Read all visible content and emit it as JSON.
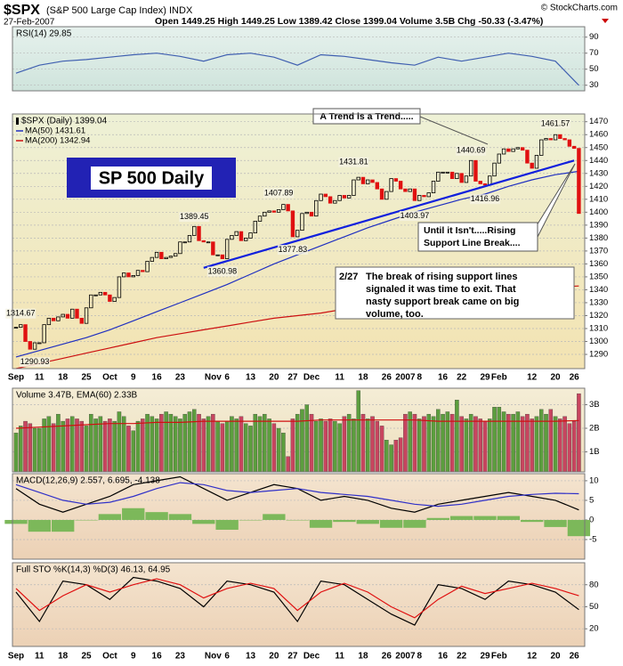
{
  "header": {
    "symbol": "$SPX",
    "name": "(S&P 500 Large Cap Index)",
    "exchange": "INDX",
    "date": "27-Feb-2007",
    "quote": "Open 1449.25 High 1449.25 Low 1389.42 Close 1399.04 Volume 3.5B Chg -50.33 (-3.47%)",
    "credit": "© StockCharts.com"
  },
  "chart_data": [
    {
      "type": "line",
      "title": "RSI(14) 29.85",
      "x": [
        0,
        5,
        10,
        15,
        20,
        25,
        30,
        35,
        40,
        45,
        50,
        55,
        60,
        65,
        70,
        75,
        80,
        85,
        90,
        95,
        100,
        105,
        110,
        115,
        120
      ],
      "series": [
        {
          "color": "#3f5fb0",
          "values": [
            45,
            55,
            60,
            62,
            65,
            68,
            70,
            66,
            60,
            68,
            70,
            65,
            55,
            68,
            66,
            62,
            58,
            55,
            65,
            60,
            65,
            70,
            66,
            60,
            29.85
          ]
        }
      ],
      "ylim": [
        23,
        103
      ],
      "yticks": [
        90,
        70,
        50,
        30
      ]
    },
    {
      "type": "candlestick",
      "title": "$SPX (Daily) 1399.04",
      "categories": [
        "Sep",
        null,
        null,
        null,
        null,
        "11",
        null,
        null,
        null,
        null,
        "18",
        null,
        null,
        null,
        null,
        "25",
        null,
        null,
        null,
        null,
        "Oct",
        null,
        null,
        null,
        null,
        "9",
        null,
        null,
        null,
        null,
        "16",
        null,
        null,
        null,
        null,
        "23",
        null,
        null,
        null,
        null,
        null,
        null,
        "Nov",
        null,
        null,
        "6",
        null,
        null,
        null,
        null,
        "13",
        null,
        null,
        null,
        null,
        "20",
        null,
        null,
        null,
        "27",
        null,
        null,
        null,
        "Dec",
        null,
        null,
        null,
        null,
        null,
        "11",
        null,
        null,
        null,
        null,
        "18",
        null,
        null,
        null,
        null,
        "26",
        null,
        null,
        null,
        "2007",
        null,
        null,
        "8",
        null,
        null,
        null,
        null,
        "16",
        null,
        null,
        null,
        "22",
        null,
        null,
        null,
        null,
        "29",
        null,
        null,
        "Feb",
        null,
        null,
        null,
        null,
        null,
        null,
        "12",
        null,
        null,
        null,
        null,
        "20",
        null,
        null,
        null,
        "26",
        null
      ],
      "close": [
        1311,
        1313,
        1300,
        1294,
        1299,
        1299,
        1313,
        1318,
        1316,
        1319,
        1321,
        1318,
        1325,
        1318,
        1314,
        1326,
        1336,
        1336,
        1338,
        1336,
        1331,
        1334,
        1350,
        1353,
        1350,
        1351,
        1355,
        1354,
        1362,
        1365,
        1369,
        1364,
        1365,
        1366,
        1368,
        1377,
        1377,
        1382,
        1389,
        1378,
        1377,
        1377,
        1367,
        1367,
        1364,
        1379,
        1382,
        1385,
        1378,
        1380,
        1384,
        1393,
        1397,
        1400,
        1401,
        1400,
        1402,
        1406,
        1401,
        1381,
        1386,
        1399,
        1400,
        1397,
        1409,
        1414,
        1412,
        1407,
        1409,
        1413,
        1411,
        1413,
        1425,
        1427,
        1422,
        1425,
        1423,
        1418,
        1410,
        1416,
        1426,
        1424,
        1418,
        1416,
        1418,
        1409,
        1413,
        1412,
        1415,
        1424,
        1431,
        1431,
        1431,
        1426,
        1430,
        1423,
        1428,
        1440,
        1424,
        1422,
        1421,
        1428,
        1438,
        1445,
        1449,
        1447,
        1449,
        1450,
        1448,
        1438,
        1434,
        1444,
        1456,
        1457,
        1456,
        1460,
        1457,
        1456,
        1451,
        1449.37,
        1399.04
      ],
      "up_color": "#000000",
      "down_color": "#e01010",
      "ylim": [
        1279,
        1476
      ],
      "yticks": [
        1290,
        1300,
        1310,
        1320,
        1330,
        1340,
        1350,
        1360,
        1370,
        1380,
        1390,
        1400,
        1410,
        1420,
        1430,
        1440,
        1450,
        1460,
        1470
      ],
      "overlays": [
        {
          "name": "MA(50) 1431.61",
          "color": "#2030c0",
          "x": [
            0,
            5,
            10,
            15,
            20,
            25,
            30,
            35,
            40,
            45,
            50,
            55,
            60,
            65,
            70,
            75,
            80,
            85,
            90,
            95,
            100,
            105,
            110,
            115,
            120
          ],
          "values": [
            1288,
            1293,
            1298,
            1303,
            1309,
            1316,
            1323,
            1330,
            1337,
            1344,
            1352,
            1360,
            1367,
            1374,
            1381,
            1388,
            1394,
            1400,
            1405,
            1410,
            1414,
            1420,
            1425,
            1429,
            1431.61
          ]
        },
        {
          "name": "MA(200) 1342.94",
          "color": "#cc1010",
          "x": [
            0,
            5,
            10,
            15,
            20,
            25,
            30,
            35,
            40,
            45,
            50,
            55,
            60,
            65,
            70,
            75,
            80,
            85,
            90,
            95,
            100,
            105,
            110,
            115,
            120
          ],
          "values": [
            1279,
            1283,
            1287,
            1291,
            1295,
            1299,
            1303,
            1306,
            1309,
            1312,
            1315,
            1318,
            1320,
            1322,
            1325,
            1327,
            1329,
            1331,
            1333,
            1335,
            1337,
            1339,
            1340,
            1342,
            1342.94
          ]
        }
      ],
      "trend_line": {
        "color": "#1020dd",
        "x": [
          40,
          119
        ],
        "values": [
          1357,
          1440
        ]
      },
      "price_labels": [
        1314.67,
        1290.93,
        1389.45,
        1360.98,
        1407.89,
        1377.83,
        1431.81,
        1403.97,
        1440.69,
        1416.96,
        1461.57
      ],
      "label_box": "SP 500 Daily",
      "annotations": [
        "A Trend is a Trend.....",
        "Until it Isn't.....Rising",
        "Support Line Break...."
      ],
      "note": {
        "date": "2/27",
        "lines": [
          "The break of rising support lines",
          "signaled it was time to exit. That",
          "nasty support break came on big",
          "volume, too."
        ]
      }
    },
    {
      "type": "bar",
      "title": "Volume 3.47B, EMA(60) 2.33B",
      "values": [
        1.8,
        2.1,
        2.3,
        2.2,
        2.0,
        2.0,
        2.4,
        2.5,
        2.2,
        2.6,
        2.3,
        2.4,
        2.5,
        2.4,
        2.3,
        2.1,
        2.6,
        2.4,
        2.5,
        2.3,
        2.4,
        2.3,
        2.7,
        2.5,
        2.1,
        1.9,
        2.3,
        2.4,
        2.6,
        2.5,
        2.4,
        2.6,
        2.7,
        2.6,
        2.5,
        2.4,
        2.6,
        2.7,
        2.8,
        2.6,
        2.4,
        2.5,
        2.6,
        2.3,
        2.2,
        2.3,
        2.5,
        2.4,
        2.5,
        2.2,
        2.1,
        2.6,
        2.5,
        2.6,
        2.4,
        2.2,
        2.0,
        1.8,
        0.8,
        2.4,
        2.6,
        2.8,
        3.0,
        2.6,
        2.3,
        2.4,
        2.3,
        2.4,
        2.3,
        2.2,
        2.5,
        2.6,
        2.4,
        3.6,
        2.6,
        2.4,
        2.5,
        2.3,
        2.1,
        1.5,
        1.3,
        1.5,
        1.6,
        2.6,
        2.7,
        2.6,
        2.4,
        2.5,
        2.6,
        2.5,
        2.8,
        2.6,
        2.7,
        2.6,
        3.2,
        2.5,
        2.4,
        2.6,
        2.5,
        2.4,
        2.3,
        2.4,
        2.9,
        2.9,
        2.7,
        2.6,
        2.6,
        2.7,
        2.5,
        2.6,
        2.4,
        2.5,
        2.8,
        2.6,
        2.8,
        2.5,
        2.4,
        2.5,
        2.2,
        2.3,
        3.47
      ],
      "up_color": "#5c9e3e",
      "down_color": "#c8455f",
      "ylim": [
        0.15,
        3.7
      ],
      "yticks": [
        {
          "value": 3,
          "label": "3B"
        },
        {
          "value": 2,
          "label": "2B"
        },
        {
          "value": 1,
          "label": "1B"
        }
      ],
      "ema": {
        "color": "#d01010",
        "x": [
          0,
          5,
          10,
          15,
          20,
          25,
          30,
          35,
          40,
          45,
          50,
          55,
          60,
          65,
          70,
          75,
          80,
          85,
          90,
          95,
          100,
          105,
          110,
          115,
          120
        ],
        "values": [
          2.0,
          2.05,
          2.1,
          2.15,
          2.2,
          2.2,
          2.25,
          2.25,
          2.3,
          2.3,
          2.3,
          2.3,
          2.3,
          2.35,
          2.35,
          2.35,
          2.35,
          2.35,
          2.3,
          2.3,
          2.3,
          2.3,
          2.3,
          2.3,
          2.33
        ]
      }
    },
    {
      "type": "macd",
      "title": "MACD(12,26,9) 2.557, 6.695, -4.138",
      "x": [
        0,
        5,
        10,
        15,
        20,
        25,
        30,
        35,
        40,
        45,
        50,
        55,
        60,
        65,
        70,
        75,
        80,
        85,
        90,
        95,
        100,
        105,
        110,
        115,
        120
      ],
      "series": [
        {
          "color": "#000000",
          "values": [
            8,
            4,
            2,
            4,
            6,
            9,
            10,
            11,
            8,
            5,
            7,
            9,
            8,
            5,
            6,
            5,
            3,
            2,
            4,
            5,
            6,
            7,
            6,
            5,
            2.557
          ]
        },
        {
          "color": "#3030c8",
          "values": [
            9,
            7,
            5,
            4,
            4.5,
            6,
            8,
            9.5,
            9,
            7.5,
            7,
            7.5,
            8,
            7,
            6.5,
            6,
            5,
            4,
            3.5,
            4,
            5,
            6,
            6.5,
            6.8,
            6.695
          ]
        }
      ],
      "histogram": {
        "color": "#7cb85a",
        "values": [
          -1,
          -3,
          -3,
          0,
          1.5,
          3,
          2,
          1.5,
          -1,
          -2.5,
          0,
          1.5,
          0,
          -2,
          -0.5,
          -1,
          -2,
          -2,
          0.5,
          1,
          1,
          1,
          -0.5,
          -1.8,
          -4.138
        ]
      },
      "ylim": [
        -10,
        11.8
      ],
      "yticks": [
        10,
        5,
        0,
        -5
      ]
    },
    {
      "type": "line",
      "title": "Full STO %K(14,3) %D(3) 46.13, 64.95",
      "x": [
        0,
        5,
        10,
        15,
        20,
        25,
        30,
        35,
        40,
        45,
        50,
        55,
        60,
        65,
        70,
        75,
        80,
        85,
        90,
        95,
        100,
        105,
        110,
        115,
        120
      ],
      "series": [
        {
          "color": "#000000",
          "values": [
            70,
            30,
            85,
            80,
            60,
            90,
            85,
            75,
            50,
            85,
            80,
            70,
            30,
            85,
            80,
            60,
            40,
            25,
            80,
            75,
            60,
            85,
            80,
            70,
            46.13
          ]
        },
        {
          "color": "#e01010",
          "values": [
            75,
            45,
            65,
            80,
            70,
            80,
            88,
            80,
            62,
            75,
            82,
            75,
            45,
            70,
            82,
            70,
            50,
            35,
            60,
            78,
            68,
            75,
            82,
            75,
            64.95
          ]
        }
      ],
      "ylim": [
        -4,
        110
      ],
      "yticks": [
        80,
        50,
        20
      ]
    }
  ]
}
